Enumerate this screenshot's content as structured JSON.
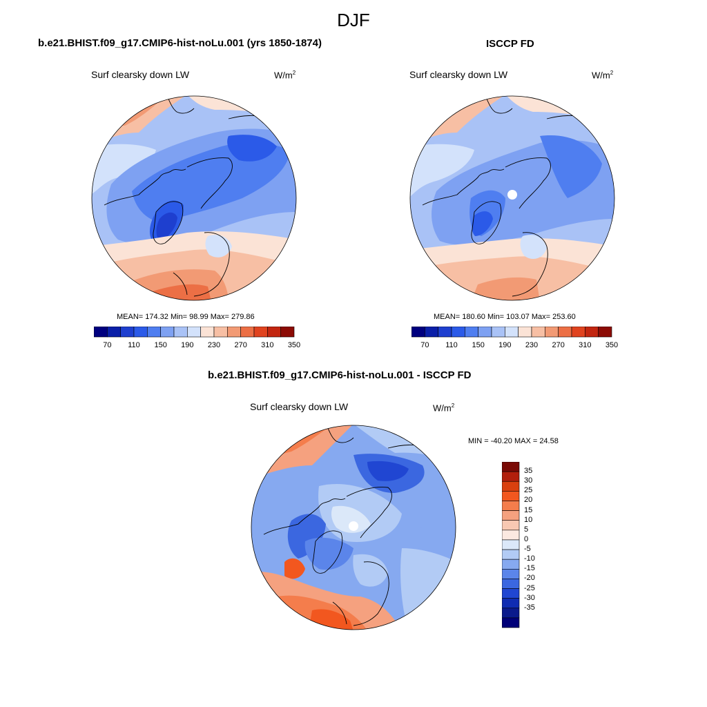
{
  "figure": {
    "title": "DJF"
  },
  "panels": [
    {
      "title": "b.e21.BHIST.f09_g17.CMIP6-hist-noLu.001 (yrs 1850-1874)",
      "variable": "Surf clearsky down LW",
      "units": "W/m",
      "units_exp": "2",
      "stats": "MEAN= 174.32  Min=  98.99  Max= 279.86",
      "colorbar_ticks": [
        "70",
        "110",
        "150",
        "190",
        "230",
        "270",
        "310",
        "350"
      ]
    },
    {
      "title": "ISCCP FD",
      "variable": "Surf clearsky down LW",
      "units": "W/m",
      "units_exp": "2",
      "stats": "MEAN= 180.60  Min= 103.07  Max= 253.60",
      "colorbar_ticks": [
        "70",
        "110",
        "150",
        "190",
        "230",
        "270",
        "310",
        "350"
      ]
    },
    {
      "title": "b.e21.BHIST.f09_g17.CMIP6-hist-noLu.001 - ISCCP FD",
      "variable": "Surf clearsky down LW",
      "units": "W/m",
      "units_exp": "2",
      "stats": "MIN = -40.20 MAX =  24.58",
      "colorbar_ticks": [
        "35",
        "30",
        "25",
        "20",
        "15",
        "10",
        "5",
        "0",
        "-5",
        "-10",
        "-15",
        "-20",
        "-25",
        "-30",
        "-35"
      ]
    }
  ],
  "colors": {
    "abs_scale": [
      "#00007f",
      "#0a1fa8",
      "#1e3fcf",
      "#2b5ae8",
      "#4f7ef0",
      "#7ea1f2",
      "#a9c2f6",
      "#d3e2fb",
      "#fbe3d6",
      "#f7bfa4",
      "#f29a74",
      "#ec6f45",
      "#e0431f",
      "#c22610",
      "#8c0b05"
    ],
    "diff_scale": [
      "#7a0a05",
      "#b11f0c",
      "#d9400f",
      "#f2571f",
      "#f47d4c",
      "#f5a17f",
      "#f8c8b2",
      "#fbe9e1",
      "#dbe8f9",
      "#b2cbf5",
      "#86a9f0",
      "#5b85ea",
      "#3b67e0",
      "#2046d2",
      "#0f2cb2",
      "#0a1a8c",
      "#000078"
    ]
  }
}
